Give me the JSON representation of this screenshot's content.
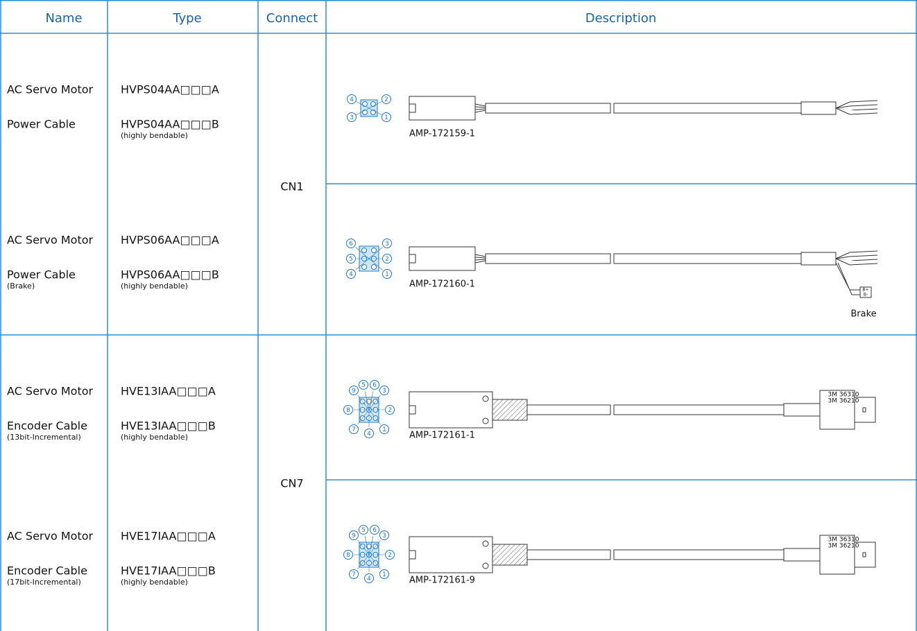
{
  "table": {
    "header": [
      "Name",
      "Type",
      "Connect",
      "Description"
    ],
    "connect": [
      "CN1",
      "CN7"
    ],
    "rows": [
      {
        "name": [
          "AC Servo Motor",
          "Power Cable"
        ],
        "types": [
          "HVPS04AA□□□A",
          "HVPS04AA□□□B"
        ],
        "type_note": "(highly bendable)",
        "part": "AMP-172159-1",
        "pins": [
          "1",
          "2",
          "3",
          "4"
        ]
      },
      {
        "name": [
          "AC Servo Motor",
          "Power Cable"
        ],
        "name_note": "(Brake)",
        "types": [
          "HVPS06AA□□□A",
          "HVPS06AA□□□B"
        ],
        "type_note": "(highly bendable)",
        "part": "AMP-172160-1",
        "pins": [
          "1",
          "2",
          "3",
          "4",
          "5",
          "6"
        ],
        "brake_pins": [
          "B+",
          "B-"
        ],
        "extra": "Brake"
      },
      {
        "name": [
          "AC Servo Motor",
          "Encoder Cable"
        ],
        "name_note": "(13bit-Incremental)",
        "types": [
          "HVE13IAA□□□A",
          "HVE13IAA□□□B"
        ],
        "type_note": "(highly bendable)",
        "part": "AMP-172161-1",
        "pins": [
          "1",
          "2",
          "3",
          "4",
          "5",
          "6",
          "7",
          "8",
          "9"
        ],
        "end_labels": [
          "3M 36310",
          "3M 36210"
        ]
      },
      {
        "name": [
          "AC Servo Motor",
          "Encoder Cable"
        ],
        "name_note": "(17bit-Incremental)",
        "types": [
          "HVE17IAA□□□A",
          "HVE17IAA□□□B"
        ],
        "type_note": "(highly bendable)",
        "part": "AMP-172161-9",
        "pins": [
          "1",
          "2",
          "3",
          "4",
          "5",
          "6",
          "7",
          "8",
          "9"
        ],
        "end_labels": [
          "3M 36310",
          "3M 36210"
        ]
      }
    ]
  }
}
